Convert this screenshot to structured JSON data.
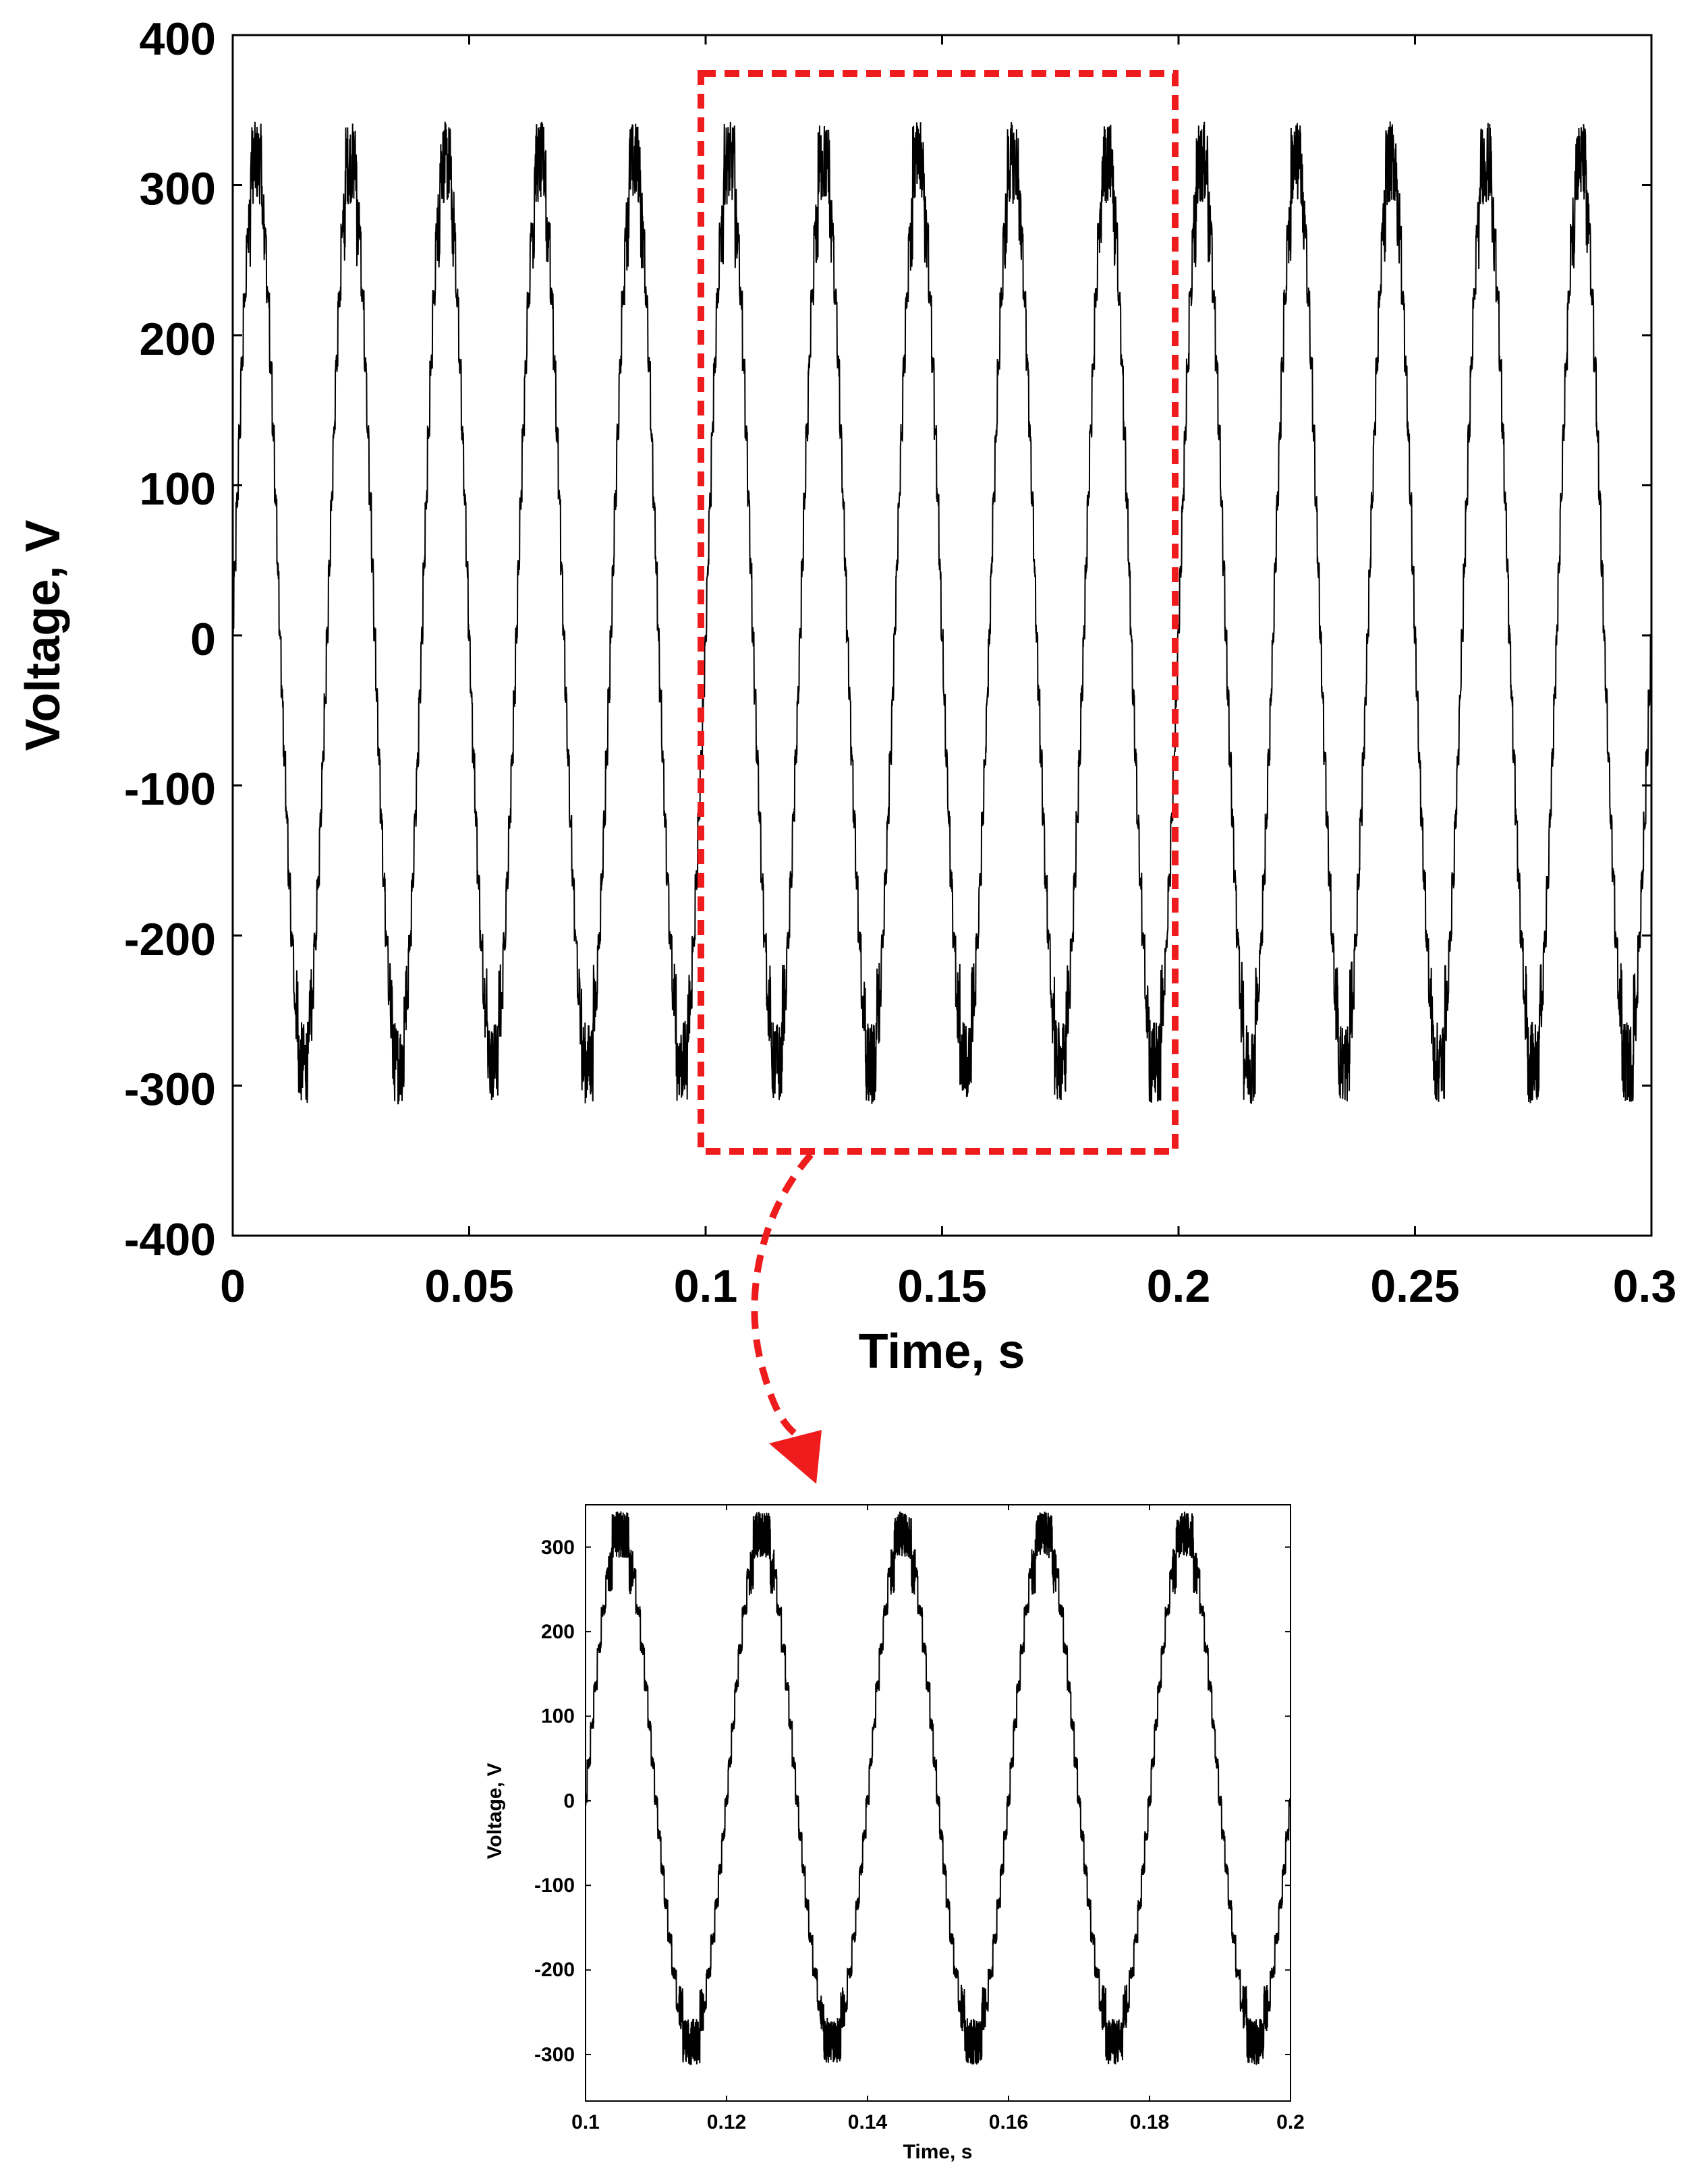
{
  "chart_data": [
    {
      "id": "main",
      "type": "line",
      "title": "",
      "xlabel": "Time, s",
      "ylabel": "Voltage, V",
      "xlim": [
        0,
        0.3
      ],
      "ylim": [
        -400,
        400
      ],
      "xticks": [
        0,
        0.05,
        0.1,
        0.15,
        0.2,
        0.25,
        0.3
      ],
      "xtick_labels": [
        "0",
        "0.05",
        "0.1",
        "0.15",
        "0.2",
        "0.25",
        "0.3"
      ],
      "yticks": [
        400,
        300,
        200,
        100,
        0,
        -100,
        -200,
        -300,
        -400
      ],
      "ytick_labels": [
        "400",
        "300",
        "200",
        "100",
        "0",
        "-100",
        "-200",
        "-300",
        "-400"
      ],
      "grid": false,
      "series": [
        {
          "name": "Voltage",
          "color": "#000000",
          "frequency_hz": 50,
          "peak_positive_v": 330,
          "peak_negative_v": -295,
          "description_values": {
            "t_start": 0,
            "t_end": 0.3,
            "cycles": 15
          }
        }
      ],
      "highlight": {
        "x_range": [
          0.1,
          0.2
        ],
        "y_range": [
          -342,
          375
        ],
        "color": "#ee1c1c",
        "style": "dashed"
      }
    },
    {
      "id": "zoom",
      "type": "line",
      "title": "",
      "xlabel": "Time, s",
      "ylabel": "Voltage, V",
      "xlim": [
        0.1,
        0.2
      ],
      "ylim": [
        -355,
        350
      ],
      "xticks": [
        0.1,
        0.12,
        0.14,
        0.16,
        0.18,
        0.2
      ],
      "xtick_labels": [
        "0.1",
        "0.12",
        "0.14",
        "0.16",
        "0.18",
        "0.2"
      ],
      "yticks": [
        300,
        200,
        100,
        0,
        -100,
        -200,
        -300
      ],
      "ytick_labels": [
        "300",
        "200",
        "100",
        "0",
        "-100",
        "-200",
        "-300"
      ],
      "grid": false,
      "series": [
        {
          "name": "Voltage",
          "color": "#000000",
          "frequency_hz": 50,
          "peak_positive_v": 330,
          "peak_negative_v": -295
        }
      ]
    }
  ],
  "arrow": {
    "color": "#ee1c1c",
    "style": "dashed",
    "from": "main-highlight-box",
    "to": "zoom-chart"
  }
}
